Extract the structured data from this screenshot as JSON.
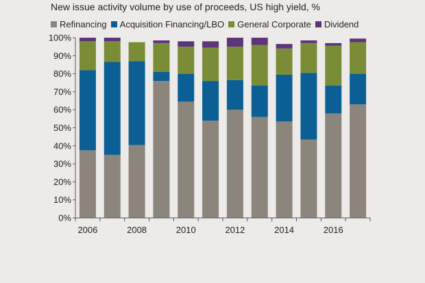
{
  "chart_data": {
    "type": "bar",
    "stacked": true,
    "title": "New issue activity volume by use of proceeds, US high yield, %",
    "x": [
      2006,
      2007,
      2008,
      2009,
      2010,
      2011,
      2012,
      2013,
      2014,
      2015,
      2016,
      2017
    ],
    "x_tick_labels": [
      "2006",
      "2008",
      "2010",
      "2012",
      "2014",
      "2016"
    ],
    "x_tick_values": [
      2006,
      2008,
      2010,
      2012,
      2014,
      2016
    ],
    "y_tick_labels": [
      "0%",
      "10%",
      "20%",
      "30%",
      "40%",
      "50%",
      "60%",
      "70%",
      "80%",
      "90%",
      "100%"
    ],
    "ylim": [
      0,
      100
    ],
    "legend_position": "top",
    "grid": false,
    "series": [
      {
        "name": "Refinancing",
        "color": "#8c857b",
        "values": [
          37.5,
          35,
          40.5,
          76,
          64.5,
          54,
          60,
          56,
          53.5,
          43.5,
          58,
          63
        ]
      },
      {
        "name": "Acquisition Financing/LBO",
        "color": "#0b5f95",
        "values": [
          44.5,
          51.5,
          46.5,
          5,
          15.5,
          22,
          16.5,
          17.5,
          26,
          37,
          15.5,
          17
        ]
      },
      {
        "name": "General Corporate",
        "color": "#7b8c36",
        "values": [
          16,
          11.5,
          10.5,
          16,
          15,
          18.5,
          18.5,
          22.5,
          14.5,
          16.5,
          22,
          17.5
        ]
      },
      {
        "name": "Dividend",
        "color": "#5d357a",
        "values": [
          2,
          2,
          0,
          1.5,
          3,
          3.5,
          5,
          4,
          2.5,
          1.5,
          1.5,
          2
        ]
      }
    ]
  }
}
